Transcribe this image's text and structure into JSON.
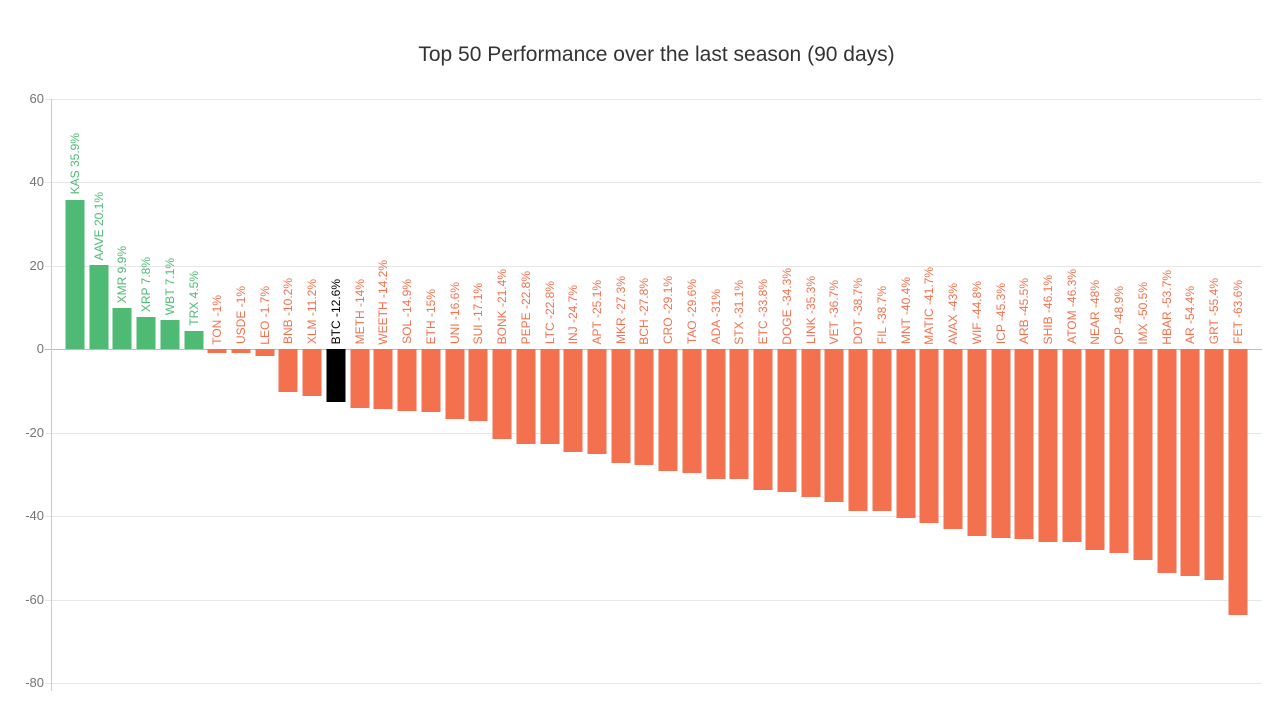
{
  "colors": {
    "positive": "#4fba74",
    "negative": "#f3714f",
    "highlight": "#000000",
    "gridline": "#e6e6e6",
    "baseline": "#bdbdbd",
    "axis_line": "#cccccc",
    "axis_label": "#757575",
    "title": "#333333",
    "background": "#ffffff"
  },
  "chart_data": {
    "type": "bar",
    "title": "Top 50 Performance over the last season (90 days)",
    "xlabel": "",
    "ylabel": "",
    "ylim": [
      -80,
      60
    ],
    "y_ticks": [
      60,
      40,
      20,
      0,
      -20,
      -40,
      -60,
      -80
    ],
    "grid": true,
    "legend": "none",
    "label_format": "SYMBOL VALUE%",
    "bars": [
      {
        "symbol": "KAS",
        "value": 35.9,
        "label": "KAS 35.9%",
        "color": "positive"
      },
      {
        "symbol": "AAVE",
        "value": 20.1,
        "label": "AAVE 20.1%",
        "color": "positive"
      },
      {
        "symbol": "XMR",
        "value": 9.9,
        "label": "XMR 9.9%",
        "color": "positive"
      },
      {
        "symbol": "XRP",
        "value": 7.8,
        "label": "XRP 7.8%",
        "color": "positive"
      },
      {
        "symbol": "WBT",
        "value": 7.1,
        "label": "WBT 7.1%",
        "color": "positive"
      },
      {
        "symbol": "TRX",
        "value": 4.5,
        "label": "TRX 4.5%",
        "color": "positive"
      },
      {
        "symbol": "TON",
        "value": -1,
        "label": "TON -1%",
        "color": "negative"
      },
      {
        "symbol": "USDE",
        "value": -1,
        "label": "USDE -1%",
        "color": "negative"
      },
      {
        "symbol": "LEO",
        "value": -1.7,
        "label": "LEO -1.7%",
        "color": "negative"
      },
      {
        "symbol": "BNB",
        "value": -10.2,
        "label": "BNB -10.2%",
        "color": "negative"
      },
      {
        "symbol": "XLM",
        "value": -11.2,
        "label": "XLM -11.2%",
        "color": "negative"
      },
      {
        "symbol": "BTC",
        "value": -12.6,
        "label": "BTC -12.6%",
        "color": "highlight"
      },
      {
        "symbol": "METH",
        "value": -14,
        "label": "METH -14%",
        "color": "negative"
      },
      {
        "symbol": "WEETH",
        "value": -14.2,
        "label": "WEETH -14.2%",
        "color": "negative"
      },
      {
        "symbol": "SOL",
        "value": -14.9,
        "label": "SOL -14.9%",
        "color": "negative"
      },
      {
        "symbol": "ETH",
        "value": -15,
        "label": "ETH -15%",
        "color": "negative"
      },
      {
        "symbol": "UNI",
        "value": -16.6,
        "label": "UNI -16.6%",
        "color": "negative"
      },
      {
        "symbol": "SUI",
        "value": -17.1,
        "label": "SUI -17.1%",
        "color": "negative"
      },
      {
        "symbol": "BONK",
        "value": -21.4,
        "label": "BONK -21.4%",
        "color": "negative"
      },
      {
        "symbol": "PEPE",
        "value": -22.8,
        "label": "PEPE -22.8%",
        "color": "negative"
      },
      {
        "symbol": "LTC",
        "value": -22.8,
        "label": "LTC -22.8%",
        "color": "negative"
      },
      {
        "symbol": "INJ",
        "value": -24.7,
        "label": "INJ -24.7%",
        "color": "negative"
      },
      {
        "symbol": "APT",
        "value": -25.1,
        "label": "APT -25.1%",
        "color": "negative"
      },
      {
        "symbol": "MKR",
        "value": -27.3,
        "label": "MKR -27.3%",
        "color": "negative"
      },
      {
        "symbol": "BCH",
        "value": -27.8,
        "label": "BCH -27.8%",
        "color": "negative"
      },
      {
        "symbol": "CRO",
        "value": -29.1,
        "label": "CRO -29.1%",
        "color": "negative"
      },
      {
        "symbol": "TAO",
        "value": -29.6,
        "label": "TAO -29.6%",
        "color": "negative"
      },
      {
        "symbol": "ADA",
        "value": -31,
        "label": "ADA -31%",
        "color": "negative"
      },
      {
        "symbol": "STX",
        "value": -31.1,
        "label": "STX -31.1%",
        "color": "negative"
      },
      {
        "symbol": "ETC",
        "value": -33.8,
        "label": "ETC -33.8%",
        "color": "negative"
      },
      {
        "symbol": "DOGE",
        "value": -34.3,
        "label": "DOGE -34.3%",
        "color": "negative"
      },
      {
        "symbol": "LINK",
        "value": -35.3,
        "label": "LINK -35.3%",
        "color": "negative"
      },
      {
        "symbol": "VET",
        "value": -36.7,
        "label": "VET -36.7%",
        "color": "negative"
      },
      {
        "symbol": "DOT",
        "value": -38.7,
        "label": "DOT -38.7%",
        "color": "negative"
      },
      {
        "symbol": "FIL",
        "value": -38.7,
        "label": "FIL -38.7%",
        "color": "negative"
      },
      {
        "symbol": "MNT",
        "value": -40.4,
        "label": "MNT -40.4%",
        "color": "negative"
      },
      {
        "symbol": "MATIC",
        "value": -41.7,
        "label": "MATIC -41.7%",
        "color": "negative"
      },
      {
        "symbol": "AVAX",
        "value": -43,
        "label": "AVAX -43%",
        "color": "negative"
      },
      {
        "symbol": "WIF",
        "value": -44.8,
        "label": "WIF -44.8%",
        "color": "negative"
      },
      {
        "symbol": "ICP",
        "value": -45.3,
        "label": "ICP -45.3%",
        "color": "negative"
      },
      {
        "symbol": "ARB",
        "value": -45.5,
        "label": "ARB -45.5%",
        "color": "negative"
      },
      {
        "symbol": "SHIB",
        "value": -46.1,
        "label": "SHIB -46.1%",
        "color": "negative"
      },
      {
        "symbol": "ATOM",
        "value": -46.3,
        "label": "ATOM -46.3%",
        "color": "negative"
      },
      {
        "symbol": "NEAR",
        "value": -48,
        "label": "NEAR -48%",
        "color": "negative"
      },
      {
        "symbol": "OP",
        "value": -48.9,
        "label": "OP -48.9%",
        "color": "negative"
      },
      {
        "symbol": "IMX",
        "value": -50.5,
        "label": "IMX -50.5%",
        "color": "negative"
      },
      {
        "symbol": "HBAR",
        "value": -53.7,
        "label": "HBAR -53.7%",
        "color": "negative"
      },
      {
        "symbol": "AR",
        "value": -54.4,
        "label": "AR -54.4%",
        "color": "negative"
      },
      {
        "symbol": "GRT",
        "value": -55.4,
        "label": "GRT -55.4%",
        "color": "negative"
      },
      {
        "symbol": "FET",
        "value": -63.6,
        "label": "FET -63.6%",
        "color": "negative"
      }
    ]
  }
}
